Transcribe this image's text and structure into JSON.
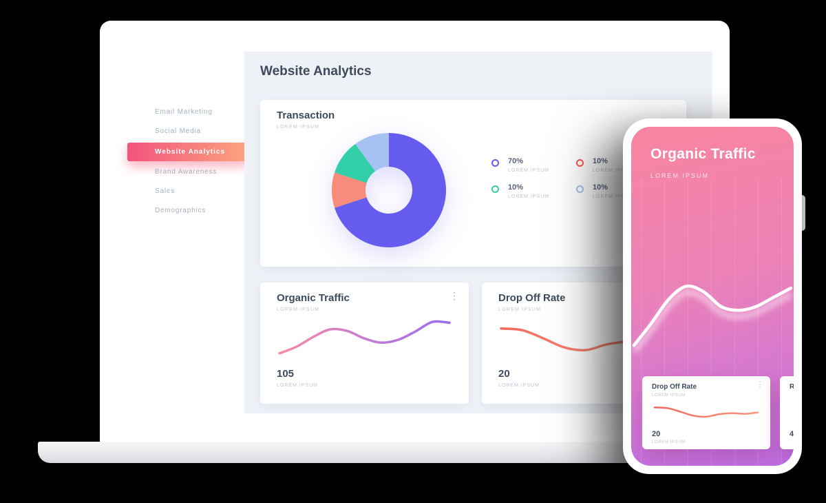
{
  "colors": {
    "accent_gradient_start": "#f4527e",
    "accent_gradient_end": "#fba57d",
    "content_bg": "#eef1f6",
    "heading": "#3d4a5c",
    "muted": "#bcc6d1",
    "sidebar_text": "#a4b0bf"
  },
  "icons": {
    "kebab": "⋮"
  },
  "laptop": {
    "page_title": "Website Analytics",
    "sidebar": {
      "items": [
        {
          "label": "Email Marketing",
          "active": false
        },
        {
          "label": "Social Media",
          "active": false
        },
        {
          "label": "Website Analytics",
          "active": true
        },
        {
          "label": "Brand Awareness",
          "active": false
        },
        {
          "label": "Sales",
          "active": false
        },
        {
          "label": "Demographics",
          "active": false
        }
      ]
    }
  },
  "transaction_card": {
    "title": "Transaction",
    "subtitle": "LOREM IPSUM",
    "legend": [
      {
        "pct": "70%",
        "caption": "LOREM IPSUM",
        "color": "#655cef"
      },
      {
        "pct": "10%",
        "caption": "LOREM IPSUM",
        "color": "#33cfa9"
      },
      {
        "pct": "10%",
        "caption": "LOREM IPSUM",
        "color": "#f4574d"
      },
      {
        "pct": "10%",
        "caption": "LOREM IPSUM",
        "color": "#a6c1f4"
      }
    ]
  },
  "organic_card": {
    "title": "Organic Traffic",
    "subtitle": "LOREM IPSUM",
    "value": "105",
    "value_caption": "LOREM IPSUM"
  },
  "dropoff_card": {
    "title": "Drop Off Rate",
    "subtitle": "LOREM IPSUM",
    "value": "20",
    "value_caption": "LOREM IPSUM"
  },
  "phone": {
    "title": "Organic Traffic",
    "subtitle": "LOREM IPSUM",
    "card": {
      "title": "Drop Off Rate",
      "subtitle": "LOREM IPSUM",
      "value": "20",
      "value_caption": "LOREM IPSUM"
    },
    "partial_card": {
      "title": "R",
      "value": "4"
    }
  },
  "chart_data": [
    {
      "id": "donut",
      "type": "pie",
      "title": "Transaction",
      "slices": [
        {
          "label": "70%",
          "value": 70,
          "color": "#655cef"
        },
        {
          "label": "10%",
          "value": 10,
          "color": "#f98b7d"
        },
        {
          "label": "10%",
          "value": 10,
          "color": "#33cfa9"
        },
        {
          "label": "10%",
          "value": 10,
          "color": "#a6c1f4"
        }
      ],
      "inner_radius_ratio": 0.41,
      "legend_position": "right"
    },
    {
      "id": "organic-wave",
      "type": "line",
      "title": "Organic Traffic",
      "y": [
        88,
        72,
        48,
        30,
        34,
        52,
        62,
        55,
        35,
        12,
        14
      ],
      "colors": [
        "#f78ca0",
        "#c87ad2",
        "#9a6cf0"
      ],
      "stroke_width": 3.5,
      "grid": false
    },
    {
      "id": "dropoff-wave",
      "type": "line",
      "title": "Drop Off Rate",
      "y": [
        28,
        32,
        52,
        74,
        80,
        66,
        60,
        64,
        56
      ],
      "colors": [
        "#f4695e",
        "#f9977d"
      ],
      "stroke_width": 3.5,
      "grid": false
    },
    {
      "id": "phone-wave",
      "type": "line",
      "title": "Organic Traffic (phone)",
      "y": [
        86,
        62,
        36,
        22,
        28,
        44,
        48,
        44,
        34,
        24
      ],
      "colors": [
        "#ffffff"
      ],
      "stroke_width": 4.5,
      "shadow": true,
      "grid": true
    },
    {
      "id": "mini-wave",
      "type": "line",
      "title": "Drop Off Rate (phone card)",
      "y": [
        28,
        32,
        52,
        74,
        80,
        66,
        60,
        64,
        56
      ],
      "colors": [
        "#f4695e",
        "#f9977d"
      ],
      "stroke_width": 2.5,
      "grid": false
    }
  ]
}
